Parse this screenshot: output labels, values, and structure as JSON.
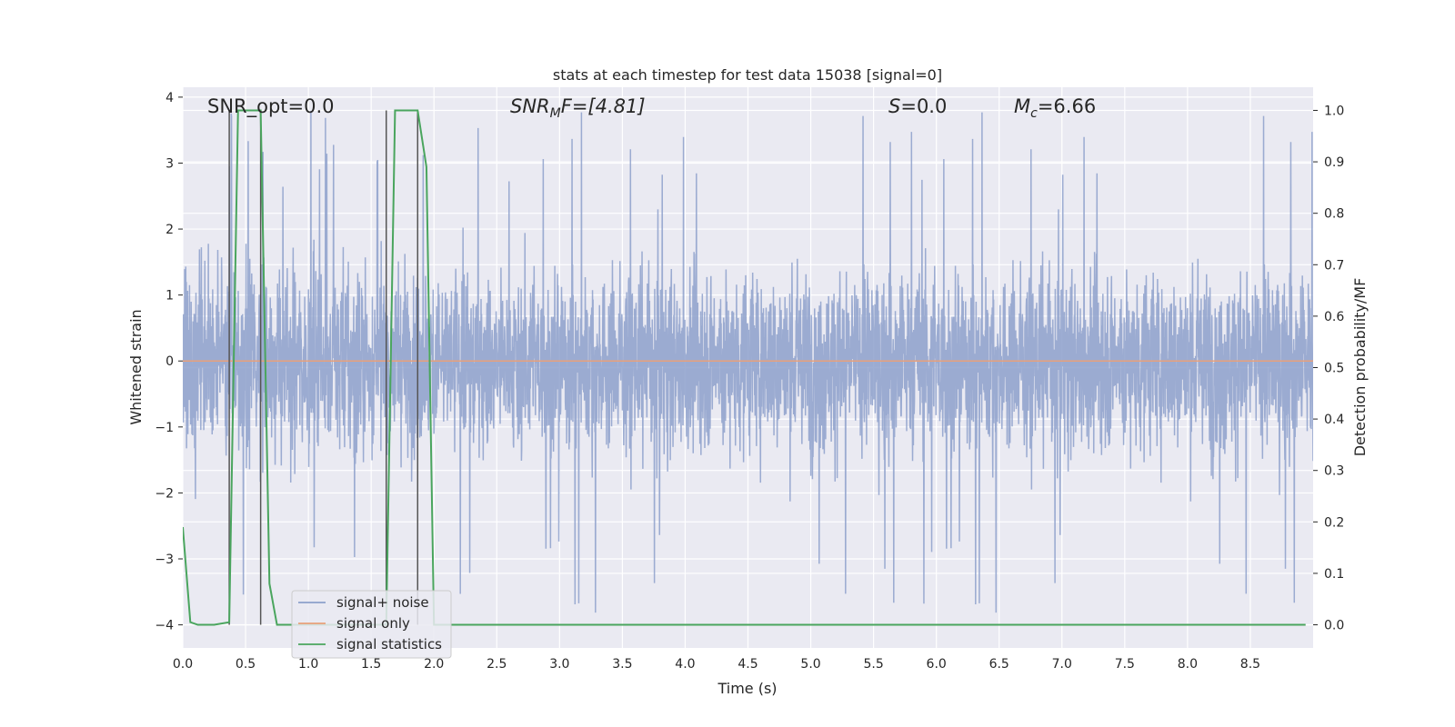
{
  "chart_data": {
    "type": "line",
    "title": "stats at each timestep for test data 15038 [signal=0]",
    "xlabel": "Time (s)",
    "ylabel_left": "Whitened strain",
    "ylabel_right": "Detection probability/MF",
    "xlim": [
      0,
      9.0
    ],
    "ylim_left": [
      -4.35,
      4.15
    ],
    "ylim_right": [
      -0.045,
      1.045
    ],
    "x_ticks": [
      "0.0",
      "0.5",
      "1.0",
      "1.5",
      "2.0",
      "2.5",
      "3.0",
      "3.5",
      "4.0",
      "4.5",
      "5.0",
      "5.5",
      "6.0",
      "6.5",
      "7.0",
      "7.5",
      "8.0",
      "8.5"
    ],
    "y_left_ticks": [
      "-4",
      "-3",
      "-2",
      "-1",
      "0",
      "1",
      "2",
      "3",
      "4"
    ],
    "y_right_ticks": [
      "0.0",
      "0.1",
      "0.2",
      "0.3",
      "0.4",
      "0.5",
      "0.6",
      "0.7",
      "0.8",
      "0.9",
      "1.0"
    ],
    "grid": true,
    "annotations": {
      "snr_opt": "SNR_opt=0.0",
      "snr_mf_label": "SNR",
      "snr_mf_sub": "M",
      "snr_mf_value": "F=[4.81]",
      "s_label": "S",
      "s_value": "=0.0",
      "mc_label": "M",
      "mc_sub": "c",
      "mc_value": "=6.66"
    },
    "legend": {
      "placement": "lower-left",
      "entries": [
        {
          "name": "signal+ noise",
          "color": "#8da0cb"
        },
        {
          "name": "signal only",
          "color": "#e8a07a"
        },
        {
          "name": "signal statistics",
          "color": "#4aa55e"
        }
      ]
    },
    "series": [
      {
        "name": "signal+ noise",
        "axis": "left",
        "color": "#8da0cb",
        "description": "dense noise, amplitude roughly within [-2.2, 2.2] with spikes up to about 3.8 and down to about -4.0",
        "x_range": [
          0,
          9.0
        ]
      },
      {
        "name": "signal only",
        "axis": "left",
        "color": "#e8a07a",
        "x": [
          0,
          9.0
        ],
        "y": [
          0,
          0
        ]
      },
      {
        "name": "signal statistics",
        "axis": "right",
        "color": "#4aa55e",
        "x": [
          0.0,
          0.06,
          0.12,
          0.25,
          0.37,
          0.44,
          0.5,
          0.62,
          0.69,
          0.75,
          0.87,
          1.0,
          1.25,
          1.5,
          1.62,
          1.69,
          1.75,
          1.87,
          1.94,
          2.0,
          2.5,
          3.0,
          4.0,
          5.0,
          6.0,
          7.0,
          8.0,
          8.94
        ],
        "y": [
          0.19,
          0.005,
          0.0,
          0.0,
          0.005,
          1.0,
          1.0,
          1.0,
          0.08,
          0.0,
          0.0,
          0.0,
          0.0,
          0.0,
          0.0,
          1.0,
          1.0,
          1.0,
          0.89,
          0.0,
          0.0,
          0.0,
          0.0,
          0.0,
          0.0,
          0.0,
          0.0,
          0.0
        ]
      }
    ],
    "vertical_markers": [
      {
        "x": 0.37,
        "y_top": 1.0,
        "y_bottom": 0.0
      },
      {
        "x": 0.62,
        "y_top": 1.0,
        "y_bottom": 0.0
      },
      {
        "x": 1.62,
        "y_top": 1.0,
        "y_bottom": 0.0
      },
      {
        "x": 1.87,
        "y_top": 1.0,
        "y_bottom": 0.0
      }
    ]
  }
}
